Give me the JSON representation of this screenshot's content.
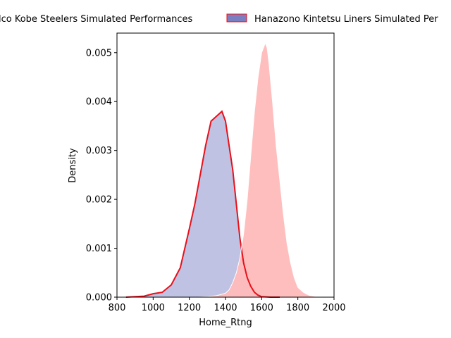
{
  "chart_data": {
    "type": "area",
    "xlabel": "Home_Rtng",
    "ylabel": "Density",
    "xlim": [
      800,
      2000
    ],
    "ylim": [
      0,
      0.0054
    ],
    "x_ticks": [
      "800",
      "1000",
      "1200",
      "1400",
      "1600",
      "1800",
      "2000"
    ],
    "y_ticks": [
      "0.000",
      "0.001",
      "0.002",
      "0.003",
      "0.004",
      "0.005"
    ],
    "legend_placement": "top, above axes",
    "series": [
      {
        "name": "lco Kobe Steelers Simulated Performances",
        "fill_color": "#bfc2e2",
        "line_color": "#e8101a",
        "x": [
          850,
          900,
          950,
          1000,
          1050,
          1100,
          1150,
          1200,
          1230,
          1260,
          1290,
          1320,
          1350,
          1380,
          1400,
          1420,
          1440,
          1460,
          1480,
          1500,
          1520,
          1540,
          1560,
          1580,
          1600,
          1650,
          1700
        ],
        "y": [
          0.0,
          1e-05,
          2e-05,
          7e-05,
          0.0001,
          0.00025,
          0.0006,
          0.0014,
          0.0019,
          0.0025,
          0.0031,
          0.0036,
          0.0037,
          0.0038,
          0.0036,
          0.0031,
          0.0026,
          0.0019,
          0.0012,
          0.0007,
          0.0004,
          0.00022,
          0.0001,
          4e-05,
          1e-05,
          0.0,
          0.0
        ]
      },
      {
        "name": "Hanazono Kintetsu Liners Simulated Per",
        "fill_color": "#ffbbbb",
        "line_color": "#ffffff",
        "legend_swatch_fill": "#7b7ec0",
        "legend_swatch_edge": "#e8101a",
        "x": [
          1250,
          1300,
          1350,
          1400,
          1420,
          1440,
          1460,
          1480,
          1500,
          1520,
          1540,
          1560,
          1580,
          1600,
          1610,
          1620,
          1630,
          1640,
          1660,
          1680,
          1700,
          1720,
          1740,
          1760,
          1780,
          1800,
          1830,
          1860,
          1900,
          1950
        ],
        "y": [
          0.0,
          1e-05,
          3e-05,
          8e-05,
          0.00015,
          0.0003,
          0.0005,
          0.0008,
          0.0013,
          0.002,
          0.0029,
          0.0038,
          0.0045,
          0.005,
          0.0051,
          0.0052,
          0.0051,
          0.0048,
          0.004,
          0.0031,
          0.0024,
          0.0017,
          0.0011,
          0.0007,
          0.0004,
          0.0002,
          0.0001,
          4e-05,
          1e-05,
          0.0
        ]
      }
    ]
  }
}
